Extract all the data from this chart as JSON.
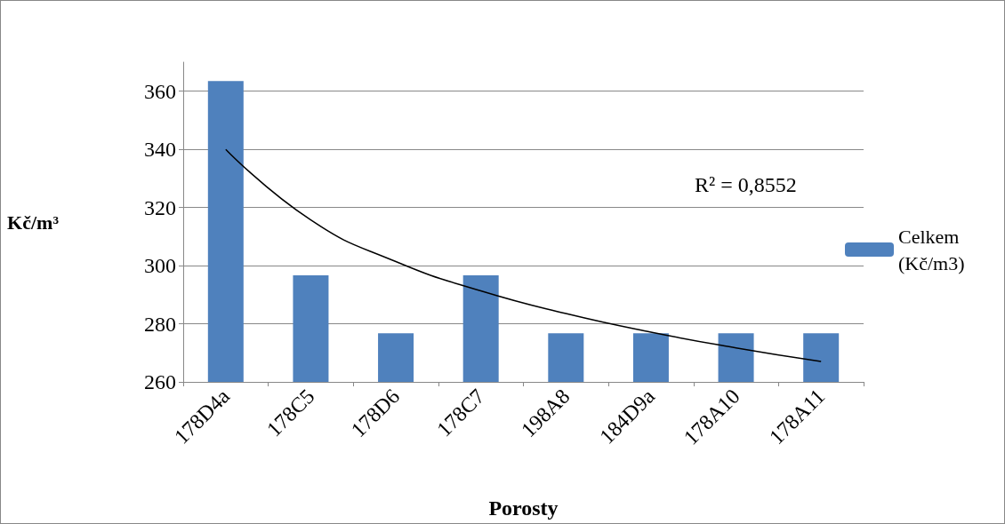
{
  "chart_data": {
    "type": "bar",
    "xlabel": "Porosty",
    "ylabel": "Kč/m³",
    "categories": [
      "178D4a",
      "178C5",
      "178D6",
      "178C7",
      "198A8",
      "184D9a",
      "178A10",
      "178A11"
    ],
    "series": [
      {
        "name": "Celkem (Kč/m3)",
        "color": "#4f81bd",
        "values": [
          363.5,
          296.7,
          276.7,
          296.7,
          276.7,
          276.7,
          276.7,
          276.7
        ]
      },
      {
        "type": "line",
        "color": "#000000",
        "x": [
          "178D4a",
          "178C5",
          "178D6",
          "178C7",
          "198A8",
          "184D9a",
          "178A10",
          "178A11"
        ],
        "values": [
          340,
          315.7,
          301.4,
          291.3,
          283.5,
          277.1,
          271.7,
          267
        ]
      }
    ],
    "ylim": [
      260,
      370
    ],
    "yticks": [
      260,
      280,
      300,
      320,
      340,
      360
    ],
    "grid": "y",
    "legend": "right",
    "marker": "none",
    "annotations": [
      "R² = 0,8552"
    ]
  }
}
